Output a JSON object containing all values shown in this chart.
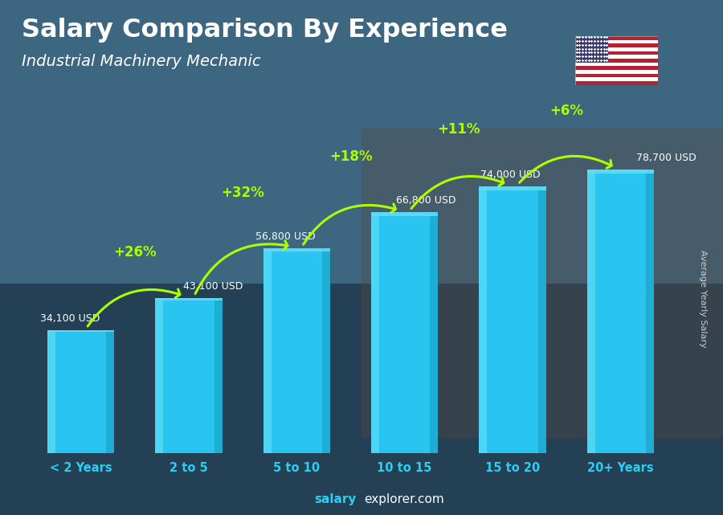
{
  "title": "Salary Comparison By Experience",
  "subtitle": "Industrial Machinery Mechanic",
  "categories": [
    "< 2 Years",
    "2 to 5",
    "5 to 10",
    "10 to 15",
    "15 to 20",
    "20+ Years"
  ],
  "values": [
    34100,
    43100,
    56800,
    66800,
    74000,
    78700
  ],
  "bar_color_main": "#29c5f0",
  "bar_color_light": "#5ddcf8",
  "bar_color_dark": "#1a9ec0",
  "salary_labels": [
    "34,100 USD",
    "43,100 USD",
    "56,800 USD",
    "66,800 USD",
    "74,000 USD",
    "78,700 USD"
  ],
  "pct_labels": [
    "+26%",
    "+32%",
    "+18%",
    "+11%",
    "+6%"
  ],
  "pct_color": "#aaff00",
  "arrow_color": "#aaff00",
  "salary_label_color": "#ffffff",
  "title_color": "#ffffff",
  "subtitle_color": "#ffffff",
  "bg_color_top": "#4a7a9e",
  "bg_color_bottom": "#2a4a62",
  "xlabel_color": "#29d0f5",
  "footer_salary_color": "#29d0f5",
  "footer_rest_color": "#ffffff",
  "ylabel_text": "Average Yearly Salary",
  "ylabel_color": "#cccccc",
  "ylim": [
    0,
    100000
  ],
  "bar_width": 0.62
}
